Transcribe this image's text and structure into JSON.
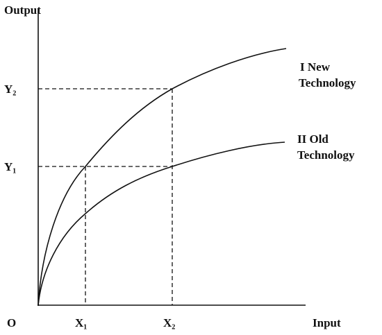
{
  "axes": {
    "y_label": "Output",
    "x_label": "Input",
    "origin": "O"
  },
  "x_marks": [
    "X₁",
    "X₂"
  ],
  "y_marks": [
    "Y₁",
    "Y₂"
  ],
  "curves": [
    {
      "label_lines": [
        "I New",
        "Technology"
      ]
    },
    {
      "label_lines": [
        "II Old",
        "Technology"
      ]
    }
  ]
}
